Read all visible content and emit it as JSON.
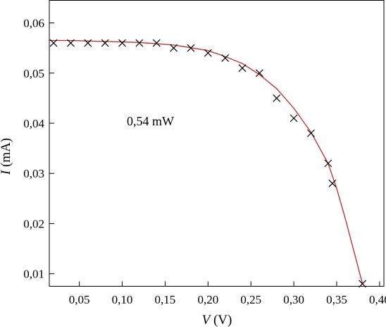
{
  "chart_data": {
    "type": "scatter",
    "title": "",
    "xlabel_var": "V",
    "xlabel_unit": " (V)",
    "ylabel_var": "I",
    "ylabel_unit": " (mA)",
    "xlim": [
      0.015,
      0.405
    ],
    "ylim": [
      0.0075,
      0.0645
    ],
    "xticks": [
      0.05,
      0.1,
      0.15,
      0.2,
      0.25,
      0.3,
      0.35,
      0.4
    ],
    "xtick_labels": [
      "0,05",
      "0,10",
      "0,15",
      "0,20",
      "0,25",
      "0,30",
      "0,35",
      "0,40"
    ],
    "yticks": [
      0.01,
      0.02,
      0.03,
      0.04,
      0.05,
      0.06
    ],
    "ytick_labels": [
      "0,01",
      "0,02",
      "0,03",
      "0,04",
      "0,05",
      "0,06"
    ],
    "annotation": "0,54 mW",
    "grid": false,
    "legend": "none",
    "series": [
      {
        "marker": "x",
        "color": "#000000",
        "x": [
          0.02,
          0.04,
          0.06,
          0.08,
          0.1,
          0.12,
          0.14,
          0.16,
          0.18,
          0.2,
          0.22,
          0.24,
          0.26,
          0.28,
          0.3,
          0.32,
          0.34,
          0.345,
          0.38
        ],
        "y": [
          0.056,
          0.056,
          0.056,
          0.056,
          0.056,
          0.056,
          0.056,
          0.055,
          0.055,
          0.054,
          0.053,
          0.051,
          0.05,
          0.045,
          0.041,
          0.038,
          0.032,
          0.028,
          0.008
        ]
      }
    ],
    "fit_curve": {
      "color": "#c0282d",
      "x": [
        0.015,
        0.04,
        0.08,
        0.12,
        0.16,
        0.2,
        0.22,
        0.24,
        0.26,
        0.28,
        0.3,
        0.32,
        0.34,
        0.35,
        0.36,
        0.37,
        0.38
      ],
      "y": [
        0.0565,
        0.0565,
        0.0563,
        0.0561,
        0.0556,
        0.0545,
        0.0533,
        0.0519,
        0.0497,
        0.0469,
        0.043,
        0.0382,
        0.032,
        0.027,
        0.021,
        0.0145,
        0.008
      ]
    }
  }
}
